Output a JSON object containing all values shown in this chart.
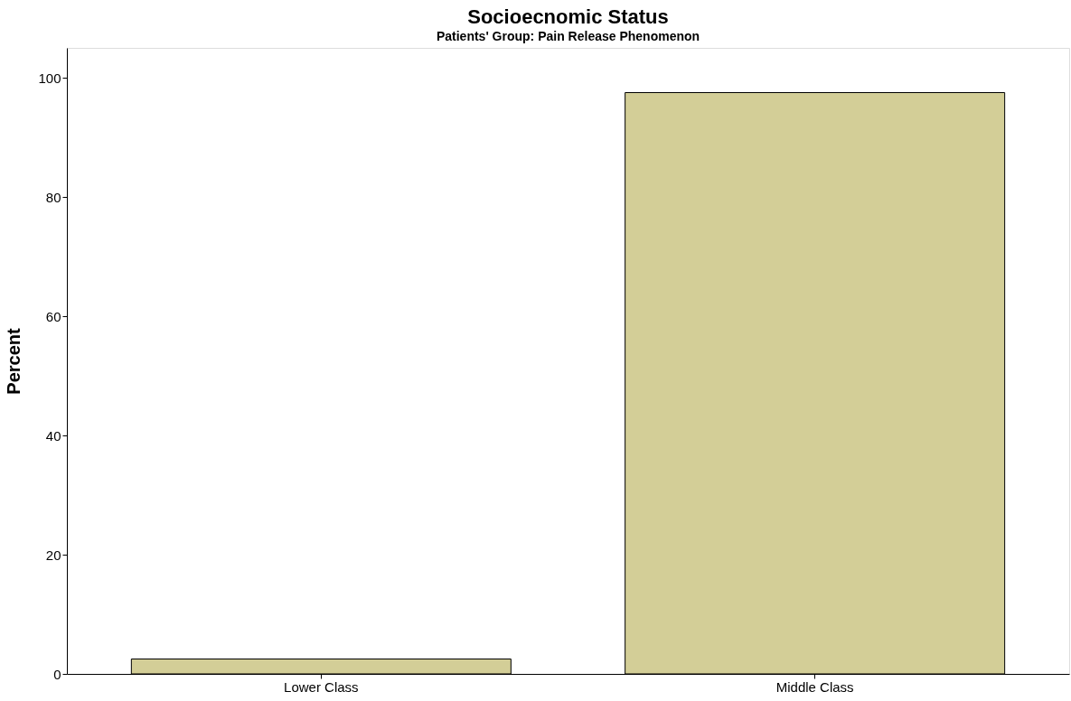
{
  "chart_data": {
    "type": "bar",
    "title": "Socioecnomic Status",
    "subtitle": "Patients' Group: Pain Release Phenomenon",
    "ylabel": "Percent",
    "categories": [
      "Lower Class",
      "Middle Class"
    ],
    "values": [
      2.5,
      97.5
    ],
    "color": "#d3ce97",
    "ylim": [
      0,
      105
    ],
    "yticks": [
      0,
      20,
      40,
      60,
      80,
      100
    ],
    "grid": false
  }
}
